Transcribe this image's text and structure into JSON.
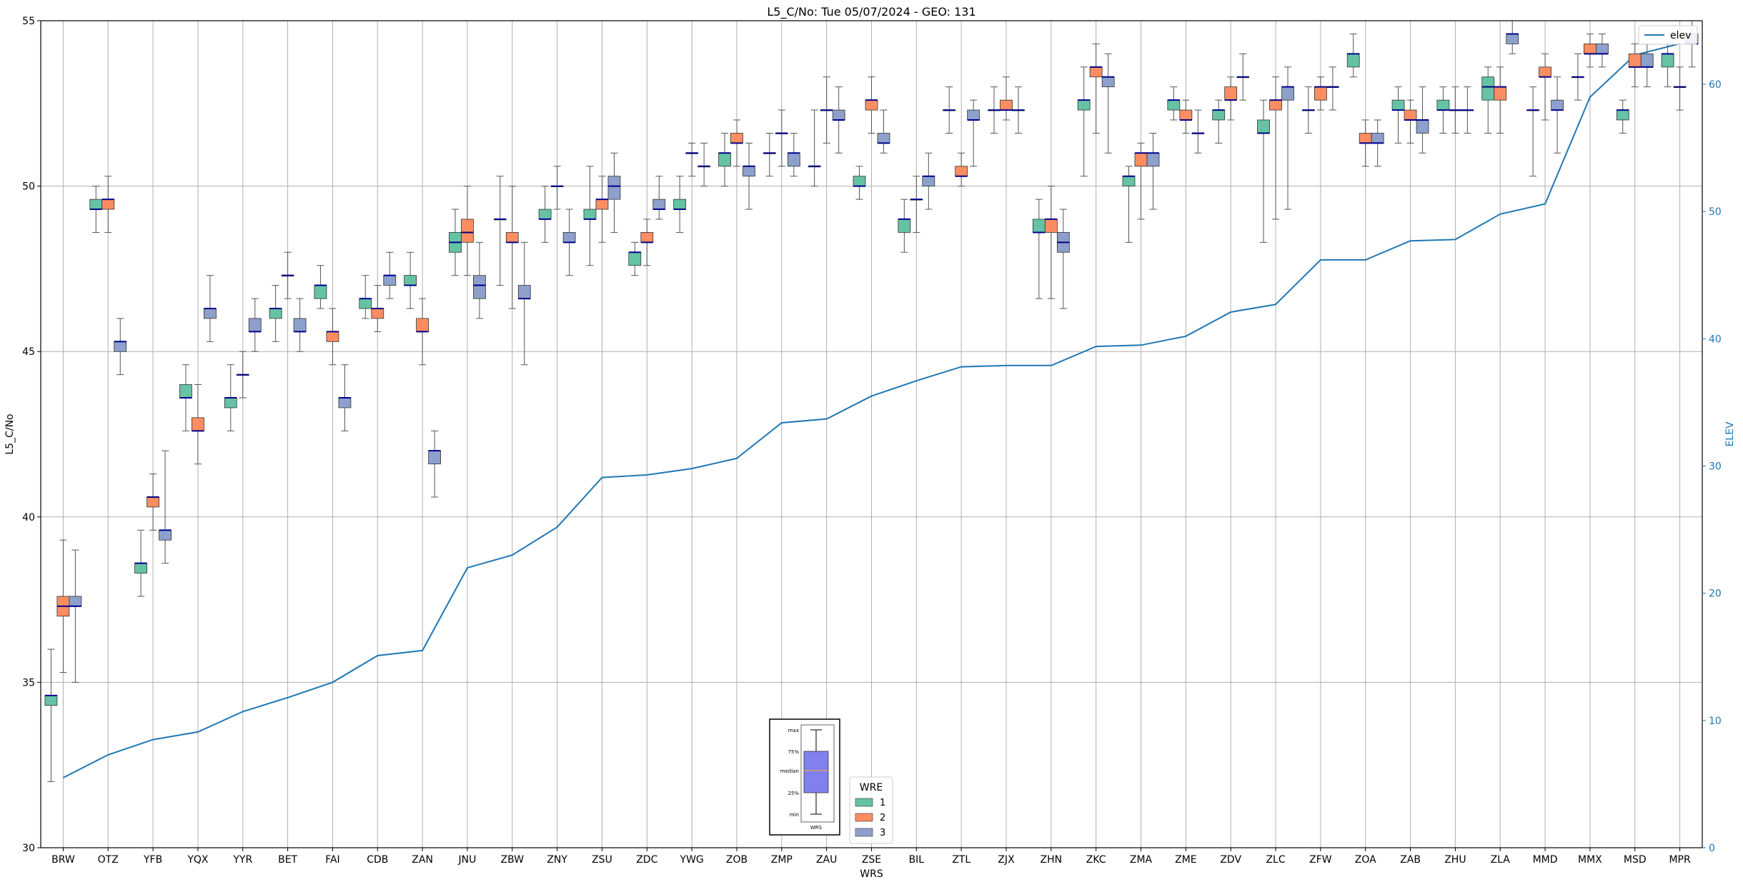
{
  "chart_data": {
    "type": "box",
    "title": "L5_C/No: Tue 05/07/2024 - GEO: 131",
    "xlabel": "WRS",
    "ylabel": "L5_C/No",
    "ylabel_right": "ELEV",
    "ylim": [
      30,
      55
    ],
    "ylim_right": [
      0,
      65
    ],
    "yticks": [
      30,
      35,
      40,
      45,
      50,
      55
    ],
    "yticks_right": [
      0,
      10,
      20,
      30,
      40,
      50,
      60
    ],
    "grid": true,
    "categories": [
      "BRW",
      "OTZ",
      "YFB",
      "YQX",
      "YYR",
      "BET",
      "FAI",
      "CDB",
      "ZAN",
      "JNU",
      "ZBW",
      "ZNY",
      "ZSU",
      "ZDC",
      "YWG",
      "ZOB",
      "ZMP",
      "ZAU",
      "ZSE",
      "BIL",
      "ZTL",
      "ZJX",
      "ZHN",
      "ZKC",
      "ZMA",
      "ZME",
      "ZDV",
      "ZLC",
      "ZFW",
      "ZOA",
      "ZAB",
      "ZHU",
      "ZLA",
      "MMD",
      "MMX",
      "MSD",
      "MPR"
    ],
    "colors": {
      "1": "#66c2a5",
      "2": "#fc8d62",
      "3": "#8da0cb",
      "elev": "#1f77b4",
      "median": "#00008b",
      "outlier_whisker": "#d62728"
    },
    "wre_legend": {
      "title": "WRE",
      "entries": [
        "1",
        "2",
        "3"
      ]
    },
    "elev_legend": "elev",
    "key_box": {
      "labels": [
        "max",
        "75%",
        "median",
        "25%",
        "min"
      ],
      "xlabel": "WRS"
    },
    "boxes": [
      {
        "cat": "BRW",
        "wre": 1,
        "min": 32.0,
        "q1": 34.3,
        "med": 34.6,
        "q3": 34.6,
        "max": 36.0
      },
      {
        "cat": "BRW",
        "wre": 2,
        "min": 35.3,
        "q1": 37.0,
        "med": 37.3,
        "q3": 37.6,
        "max": 39.3
      },
      {
        "cat": "BRW",
        "wre": 3,
        "min": 35.0,
        "q1": 37.3,
        "med": 37.3,
        "q3": 37.6,
        "max": 39.0
      },
      {
        "cat": "OTZ",
        "wre": 1,
        "min": 48.6,
        "q1": 49.3,
        "med": 49.3,
        "q3": 49.6,
        "max": 50.0
      },
      {
        "cat": "OTZ",
        "wre": 2,
        "min": 48.6,
        "q1": 49.3,
        "med": 49.6,
        "q3": 49.6,
        "max": 50.3
      },
      {
        "cat": "OTZ",
        "wre": 3,
        "min": 44.3,
        "q1": 45.0,
        "med": 45.3,
        "q3": 45.3,
        "max": 46.0
      },
      {
        "cat": "YFB",
        "wre": 1,
        "min": 37.6,
        "q1": 38.3,
        "med": 38.6,
        "q3": 38.6,
        "max": 39.6
      },
      {
        "cat": "YFB",
        "wre": 2,
        "min": 39.6,
        "q1": 40.3,
        "med": 40.6,
        "q3": 40.6,
        "max": 41.3
      },
      {
        "cat": "YFB",
        "wre": 3,
        "min": 38.6,
        "q1": 39.3,
        "med": 39.6,
        "q3": 39.6,
        "max": 42.0
      },
      {
        "cat": "YQX",
        "wre": 1,
        "min": 42.6,
        "q1": 43.6,
        "med": 43.6,
        "q3": 44.0,
        "max": 44.6
      },
      {
        "cat": "YQX",
        "wre": 2,
        "min": 41.6,
        "q1": 42.6,
        "med": 42.6,
        "q3": 43.0,
        "max": 44.0
      },
      {
        "cat": "YQX",
        "wre": 3,
        "min": 45.3,
        "q1": 46.0,
        "med": 46.3,
        "q3": 46.3,
        "max": 47.3
      },
      {
        "cat": "YYR",
        "wre": 1,
        "min": 42.6,
        "q1": 43.3,
        "med": 43.6,
        "q3": 43.6,
        "max": 44.6
      },
      {
        "cat": "YYR",
        "wre": 2,
        "min": 43.6,
        "q1": 44.3,
        "med": 44.3,
        "q3": 44.3,
        "max": 45.0
      },
      {
        "cat": "YYR",
        "wre": 3,
        "min": 45.0,
        "q1": 45.6,
        "med": 45.6,
        "q3": 46.0,
        "max": 46.6
      },
      {
        "cat": "BET",
        "wre": 1,
        "min": 45.3,
        "q1": 46.0,
        "med": 46.3,
        "q3": 46.3,
        "max": 47.0
      },
      {
        "cat": "BET",
        "wre": 2,
        "min": 46.6,
        "q1": 47.3,
        "med": 47.3,
        "q3": 47.3,
        "max": 48.0
      },
      {
        "cat": "BET",
        "wre": 3,
        "min": 45.0,
        "q1": 45.6,
        "med": 45.6,
        "q3": 46.0,
        "max": 46.6
      },
      {
        "cat": "FAI",
        "wre": 1,
        "min": 46.3,
        "q1": 46.6,
        "med": 47.0,
        "q3": 47.0,
        "max": 47.6
      },
      {
        "cat": "FAI",
        "wre": 2,
        "min": 44.6,
        "q1": 45.3,
        "med": 45.6,
        "q3": 45.6,
        "max": 46.3
      },
      {
        "cat": "FAI",
        "wre": 3,
        "min": 42.6,
        "q1": 43.3,
        "med": 43.6,
        "q3": 43.6,
        "max": 44.6
      },
      {
        "cat": "CDB",
        "wre": 1,
        "min": 46.0,
        "q1": 46.3,
        "med": 46.6,
        "q3": 46.6,
        "max": 47.3
      },
      {
        "cat": "CDB",
        "wre": 2,
        "min": 45.6,
        "q1": 46.0,
        "med": 46.3,
        "q3": 46.3,
        "max": 47.0
      },
      {
        "cat": "CDB",
        "wre": 3,
        "min": 46.6,
        "q1": 47.0,
        "med": 47.3,
        "q3": 47.3,
        "max": 48.0
      },
      {
        "cat": "ZAN",
        "wre": 1,
        "min": 46.3,
        "q1": 47.0,
        "med": 47.0,
        "q3": 47.3,
        "max": 48.0
      },
      {
        "cat": "ZAN",
        "wre": 2,
        "min": 44.6,
        "q1": 45.6,
        "med": 45.6,
        "q3": 46.0,
        "max": 46.6
      },
      {
        "cat": "ZAN",
        "wre": 3,
        "min": 40.6,
        "q1": 41.6,
        "med": 42.0,
        "q3": 42.0,
        "max": 42.6
      },
      {
        "cat": "JNU",
        "wre": 1,
        "min": 47.3,
        "q1": 48.0,
        "med": 48.3,
        "q3": 48.6,
        "max": 49.3
      },
      {
        "cat": "JNU",
        "wre": 2,
        "min": 47.3,
        "q1": 48.3,
        "med": 48.6,
        "q3": 49.0,
        "max": 50.0
      },
      {
        "cat": "JNU",
        "wre": 3,
        "min": 46.0,
        "q1": 46.6,
        "med": 47.0,
        "q3": 47.3,
        "max": 48.3
      },
      {
        "cat": "ZBW",
        "wre": 1,
        "min": 47.0,
        "q1": 49.0,
        "med": 49.0,
        "q3": 49.0,
        "max": 50.3
      },
      {
        "cat": "ZBW",
        "wre": 2,
        "min": 46.3,
        "q1": 48.3,
        "med": 48.3,
        "q3": 48.6,
        "max": 50.0
      },
      {
        "cat": "ZBW",
        "wre": 3,
        "min": 44.6,
        "q1": 46.6,
        "med": 46.6,
        "q3": 47.0,
        "max": 48.3
      },
      {
        "cat": "ZNY",
        "wre": 1,
        "min": 48.3,
        "q1": 49.0,
        "med": 49.0,
        "q3": 49.3,
        "max": 50.0
      },
      {
        "cat": "ZNY",
        "wre": 2,
        "min": 49.3,
        "q1": 50.0,
        "med": 50.0,
        "q3": 50.0,
        "max": 50.6
      },
      {
        "cat": "ZNY",
        "wre": 3,
        "min": 47.3,
        "q1": 48.3,
        "med": 48.3,
        "q3": 48.6,
        "max": 49.3
      },
      {
        "cat": "ZSU",
        "wre": 1,
        "min": 47.6,
        "q1": 49.0,
        "med": 49.0,
        "q3": 49.3,
        "max": 50.6
      },
      {
        "cat": "ZSU",
        "wre": 2,
        "min": 48.3,
        "q1": 49.3,
        "med": 49.6,
        "q3": 49.6,
        "max": 50.3
      },
      {
        "cat": "ZSU",
        "wre": 3,
        "min": 48.6,
        "q1": 49.6,
        "med": 50.0,
        "q3": 50.3,
        "max": 51.0
      },
      {
        "cat": "ZDC",
        "wre": 1,
        "min": 47.3,
        "q1": 47.6,
        "med": 48.0,
        "q3": 48.0,
        "max": 48.3
      },
      {
        "cat": "ZDC",
        "wre": 2,
        "min": 47.6,
        "q1": 48.3,
        "med": 48.3,
        "q3": 48.6,
        "max": 49.0
      },
      {
        "cat": "ZDC",
        "wre": 3,
        "min": 49.0,
        "q1": 49.3,
        "med": 49.3,
        "q3": 49.6,
        "max": 50.3
      },
      {
        "cat": "YWG",
        "wre": 1,
        "min": 48.6,
        "q1": 49.3,
        "med": 49.3,
        "q3": 49.6,
        "max": 50.3
      },
      {
        "cat": "YWG",
        "wre": 2,
        "min": 50.3,
        "q1": 51.0,
        "med": 51.0,
        "q3": 51.0,
        "max": 51.3
      },
      {
        "cat": "YWG",
        "wre": 3,
        "min": 50.0,
        "q1": 50.6,
        "med": 50.6,
        "q3": 50.6,
        "max": 51.3
      },
      {
        "cat": "ZOB",
        "wre": 1,
        "min": 50.0,
        "q1": 50.6,
        "med": 51.0,
        "q3": 51.0,
        "max": 51.6
      },
      {
        "cat": "ZOB",
        "wre": 2,
        "min": 50.6,
        "q1": 51.3,
        "med": 51.3,
        "q3": 51.6,
        "max": 52.0
      },
      {
        "cat": "ZOB",
        "wre": 3,
        "min": 49.3,
        "q1": 50.3,
        "med": 50.6,
        "q3": 50.6,
        "max": 51.3
      },
      {
        "cat": "ZMP",
        "wre": 1,
        "min": 50.3,
        "q1": 51.0,
        "med": 51.0,
        "q3": 51.0,
        "max": 51.6
      },
      {
        "cat": "ZMP",
        "wre": 2,
        "min": 50.6,
        "q1": 51.6,
        "med": 51.6,
        "q3": 51.6,
        "max": 52.3
      },
      {
        "cat": "ZMP",
        "wre": 3,
        "min": 50.3,
        "q1": 50.6,
        "med": 51.0,
        "q3": 51.0,
        "max": 51.6
      },
      {
        "cat": "ZAU",
        "wre": 1,
        "min": 50.0,
        "q1": 50.6,
        "med": 50.6,
        "q3": 50.6,
        "max": 52.3
      },
      {
        "cat": "ZAU",
        "wre": 2,
        "min": 51.3,
        "q1": 52.3,
        "med": 52.3,
        "q3": 52.3,
        "max": 53.3
      },
      {
        "cat": "ZAU",
        "wre": 3,
        "min": 51.0,
        "q1": 52.0,
        "med": 52.0,
        "q3": 52.3,
        "max": 53.0
      },
      {
        "cat": "ZSE",
        "wre": 1,
        "min": 49.6,
        "q1": 50.0,
        "med": 50.0,
        "q3": 50.3,
        "max": 50.6
      },
      {
        "cat": "ZSE",
        "wre": 2,
        "min": 51.6,
        "q1": 52.3,
        "med": 52.6,
        "q3": 52.6,
        "max": 53.3
      },
      {
        "cat": "ZSE",
        "wre": 3,
        "min": 51.0,
        "q1": 51.3,
        "med": 51.3,
        "q3": 51.6,
        "max": 52.3
      },
      {
        "cat": "BIL",
        "wre": 1,
        "min": 48.0,
        "q1": 48.6,
        "med": 49.0,
        "q3": 49.0,
        "max": 49.6
      },
      {
        "cat": "BIL",
        "wre": 2,
        "min": 48.6,
        "q1": 49.6,
        "med": 49.6,
        "q3": 49.6,
        "max": 50.3
      },
      {
        "cat": "BIL",
        "wre": 3,
        "min": 49.3,
        "q1": 50.0,
        "med": 50.3,
        "q3": 50.3,
        "max": 51.0
      },
      {
        "cat": "ZTL",
        "wre": 1,
        "min": 51.6,
        "q1": 52.3,
        "med": 52.3,
        "q3": 52.3,
        "max": 53.0
      },
      {
        "cat": "ZTL",
        "wre": 2,
        "min": 50.0,
        "q1": 50.3,
        "med": 50.3,
        "q3": 50.6,
        "max": 51.0
      },
      {
        "cat": "ZTL",
        "wre": 3,
        "min": 50.6,
        "q1": 52.0,
        "med": 52.0,
        "q3": 52.3,
        "max": 52.6
      },
      {
        "cat": "ZJX",
        "wre": 1,
        "min": 51.6,
        "q1": 52.3,
        "med": 52.3,
        "q3": 52.3,
        "max": 53.0
      },
      {
        "cat": "ZJX",
        "wre": 2,
        "min": 52.0,
        "q1": 52.3,
        "med": 52.3,
        "q3": 52.6,
        "max": 53.3
      },
      {
        "cat": "ZJX",
        "wre": 3,
        "min": 51.6,
        "q1": 52.3,
        "med": 52.3,
        "q3": 52.3,
        "max": 53.0
      },
      {
        "cat": "ZHN",
        "wre": 1,
        "min": 46.6,
        "q1": 48.6,
        "med": 48.6,
        "q3": 49.0,
        "max": 49.6
      },
      {
        "cat": "ZHN",
        "wre": 2,
        "min": 46.6,
        "q1": 48.6,
        "med": 49.0,
        "q3": 49.0,
        "max": 50.0
      },
      {
        "cat": "ZHN",
        "wre": 3,
        "min": 46.3,
        "q1": 48.0,
        "med": 48.3,
        "q3": 48.6,
        "max": 49.3
      },
      {
        "cat": "ZKC",
        "wre": 1,
        "min": 50.3,
        "q1": 52.3,
        "med": 52.6,
        "q3": 52.6,
        "max": 53.6
      },
      {
        "cat": "ZKC",
        "wre": 2,
        "min": 51.6,
        "q1": 53.3,
        "med": 53.6,
        "q3": 53.6,
        "max": 54.3
      },
      {
        "cat": "ZKC",
        "wre": 3,
        "min": 51.0,
        "q1": 53.0,
        "med": 53.3,
        "q3": 53.3,
        "max": 54.0
      },
      {
        "cat": "ZMA",
        "wre": 1,
        "min": 48.3,
        "q1": 50.0,
        "med": 50.3,
        "q3": 50.3,
        "max": 50.6
      },
      {
        "cat": "ZMA",
        "wre": 2,
        "min": 49.0,
        "q1": 50.6,
        "med": 51.0,
        "q3": 51.0,
        "max": 51.3
      },
      {
        "cat": "ZMA",
        "wre": 3,
        "min": 49.3,
        "q1": 50.6,
        "med": 51.0,
        "q3": 51.0,
        "max": 51.6
      },
      {
        "cat": "ZME",
        "wre": 1,
        "min": 52.0,
        "q1": 52.3,
        "med": 52.6,
        "q3": 52.6,
        "max": 53.0
      },
      {
        "cat": "ZME",
        "wre": 2,
        "min": 51.6,
        "q1": 52.0,
        "med": 52.0,
        "q3": 52.3,
        "max": 52.6
      },
      {
        "cat": "ZME",
        "wre": 3,
        "min": 51.0,
        "q1": 51.6,
        "med": 51.6,
        "q3": 51.6,
        "max": 52.3
      },
      {
        "cat": "ZDV",
        "wre": 1,
        "min": 51.3,
        "q1": 52.0,
        "med": 52.3,
        "q3": 52.3,
        "max": 52.6
      },
      {
        "cat": "ZDV",
        "wre": 2,
        "min": 52.0,
        "q1": 52.6,
        "med": 52.6,
        "q3": 53.0,
        "max": 53.3
      },
      {
        "cat": "ZDV",
        "wre": 3,
        "min": 52.6,
        "q1": 53.3,
        "med": 53.3,
        "q3": 53.3,
        "max": 54.0
      },
      {
        "cat": "ZLC",
        "wre": 1,
        "min": 48.3,
        "q1": 51.6,
        "med": 51.6,
        "q3": 52.0,
        "max": 52.6
      },
      {
        "cat": "ZLC",
        "wre": 2,
        "min": 49.0,
        "q1": 52.3,
        "med": 52.6,
        "q3": 52.6,
        "max": 53.3
      },
      {
        "cat": "ZLC",
        "wre": 3,
        "min": 49.3,
        "q1": 52.6,
        "med": 53.0,
        "q3": 53.0,
        "max": 53.6
      },
      {
        "cat": "ZFW",
        "wre": 1,
        "min": 51.6,
        "q1": 52.3,
        "med": 52.3,
        "q3": 52.3,
        "max": 53.0
      },
      {
        "cat": "ZFW",
        "wre": 2,
        "min": 52.3,
        "q1": 52.6,
        "med": 53.0,
        "q3": 53.0,
        "max": 53.3
      },
      {
        "cat": "ZFW",
        "wre": 3,
        "min": 52.3,
        "q1": 53.0,
        "med": 53.0,
        "q3": 53.0,
        "max": 53.6
      },
      {
        "cat": "ZOA",
        "wre": 1,
        "min": 53.3,
        "q1": 53.6,
        "med": 54.0,
        "q3": 54.0,
        "max": 54.6
      },
      {
        "cat": "ZOA",
        "wre": 2,
        "min": 50.6,
        "q1": 51.3,
        "med": 51.3,
        "q3": 51.6,
        "max": 52.0
      },
      {
        "cat": "ZOA",
        "wre": 3,
        "min": 50.6,
        "q1": 51.3,
        "med": 51.3,
        "q3": 51.6,
        "max": 52.0
      },
      {
        "cat": "ZAB",
        "wre": 1,
        "min": 51.3,
        "q1": 52.3,
        "med": 52.3,
        "q3": 52.6,
        "max": 53.0
      },
      {
        "cat": "ZAB",
        "wre": 2,
        "min": 51.3,
        "q1": 52.0,
        "med": 52.0,
        "q3": 52.3,
        "max": 52.6
      },
      {
        "cat": "ZAB",
        "wre": 3,
        "min": 51.0,
        "q1": 51.6,
        "med": 52.0,
        "q3": 52.0,
        "max": 53.0
      },
      {
        "cat": "ZHU",
        "wre": 1,
        "min": 51.6,
        "q1": 52.3,
        "med": 52.3,
        "q3": 52.6,
        "max": 53.0
      },
      {
        "cat": "ZHU",
        "wre": 2,
        "min": 51.6,
        "q1": 52.3,
        "med": 52.3,
        "q3": 52.3,
        "max": 53.0
      },
      {
        "cat": "ZHU",
        "wre": 3,
        "min": 51.6,
        "q1": 52.3,
        "med": 52.3,
        "q3": 52.3,
        "max": 53.0
      },
      {
        "cat": "ZLA",
        "wre": 1,
        "min": 51.6,
        "q1": 52.6,
        "med": 53.0,
        "q3": 53.3,
        "max": 53.6
      },
      {
        "cat": "ZLA",
        "wre": 2,
        "min": 51.6,
        "q1": 52.6,
        "med": 53.0,
        "q3": 53.0,
        "max": 53.6
      },
      {
        "cat": "ZLA",
        "wre": 3,
        "min": 54.0,
        "q1": 54.3,
        "med": 54.6,
        "q3": 54.6,
        "max": 55.0
      },
      {
        "cat": "MMD",
        "wre": 1,
        "min": 50.3,
        "q1": 52.3,
        "med": 52.3,
        "q3": 52.3,
        "max": 53.0
      },
      {
        "cat": "MMD",
        "wre": 2,
        "min": 52.0,
        "q1": 53.3,
        "med": 53.3,
        "q3": 53.6,
        "max": 54.0
      },
      {
        "cat": "MMD",
        "wre": 3,
        "min": 51.0,
        "q1": 52.3,
        "med": 52.3,
        "q3": 52.6,
        "max": 53.3
      },
      {
        "cat": "MMX",
        "wre": 1,
        "min": 52.6,
        "q1": 53.3,
        "med": 53.3,
        "q3": 53.3,
        "max": 54.0
      },
      {
        "cat": "MMX",
        "wre": 2,
        "min": 53.6,
        "q1": 54.0,
        "med": 54.0,
        "q3": 54.3,
        "max": 54.6
      },
      {
        "cat": "MMX",
        "wre": 3,
        "min": 53.6,
        "q1": 54.0,
        "med": 54.0,
        "q3": 54.3,
        "max": 54.6
      },
      {
        "cat": "MSD",
        "wre": 1,
        "min": 51.6,
        "q1": 52.0,
        "med": 52.3,
        "q3": 52.3,
        "max": 52.6
      },
      {
        "cat": "MSD",
        "wre": 2,
        "min": 53.0,
        "q1": 53.6,
        "med": 53.6,
        "q3": 54.0,
        "max": 54.3
      },
      {
        "cat": "MSD",
        "wre": 3,
        "min": 53.0,
        "q1": 53.6,
        "med": 53.6,
        "q3": 54.0,
        "max": 54.3
      },
      {
        "cat": "MPR",
        "wre": 1,
        "min": 53.0,
        "q1": 53.6,
        "med": 54.0,
        "q3": 54.0,
        "max": 54.3
      },
      {
        "cat": "MPR",
        "wre": 2,
        "min": 52.3,
        "q1": 53.0,
        "med": 53.0,
        "q3": 53.0,
        "max": 53.6
      },
      {
        "cat": "MPR",
        "wre": 3,
        "min": 53.6,
        "q1": 54.3,
        "med": 54.3,
        "q3": 54.6,
        "max": 55.0
      }
    ],
    "elev": [
      5.5,
      7.3,
      8.5,
      9.1,
      10.7,
      11.8,
      13.0,
      15.1,
      15.5,
      22.0,
      23.0,
      25.2,
      29.1,
      29.3,
      29.8,
      30.6,
      33.4,
      33.7,
      35.5,
      36.7,
      37.8,
      37.9,
      37.9,
      39.4,
      39.5,
      40.2,
      42.1,
      42.7,
      46.2,
      46.2,
      47.7,
      47.8,
      49.8,
      50.6,
      59.0,
      62.3,
      63.2
    ]
  }
}
